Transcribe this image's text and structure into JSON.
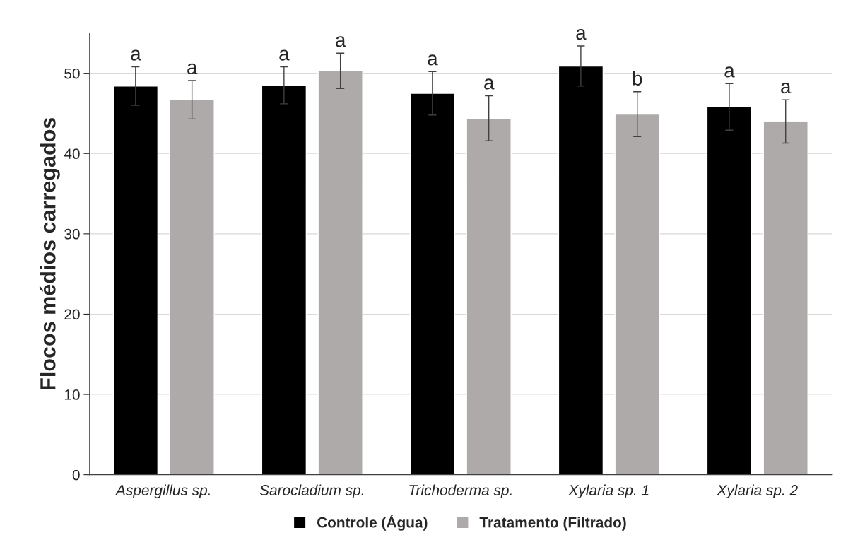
{
  "chart_data": {
    "type": "bar",
    "ylabel": "Flocos médios carregados",
    "categories": [
      "Aspergillus sp.",
      "Sarocladium sp.",
      "Trichoderma sp.",
      "Xylaria sp. 1",
      "Xylaria sp. 2"
    ],
    "series": [
      {
        "name": "Controle (Água)",
        "color": "#000000",
        "values": [
          48.4,
          48.5,
          47.5,
          50.9,
          45.8
        ],
        "errors": [
          2.4,
          2.3,
          2.7,
          2.5,
          2.9
        ]
      },
      {
        "name": "Tratamento (Filtrado)",
        "color": "#aeaaaa",
        "values": [
          46.7,
          50.3,
          44.4,
          44.9,
          44.0
        ],
        "errors": [
          2.4,
          2.2,
          2.8,
          2.8,
          2.7
        ]
      }
    ],
    "annotations": [
      "a",
      "a",
      "a",
      "a",
      "a",
      "a",
      "a",
      "b",
      "a",
      "a"
    ],
    "ylim": [
      0,
      55
    ],
    "yticks": [
      0,
      10,
      20,
      30,
      40,
      50
    ],
    "grid": "y",
    "legend": "bottom"
  }
}
